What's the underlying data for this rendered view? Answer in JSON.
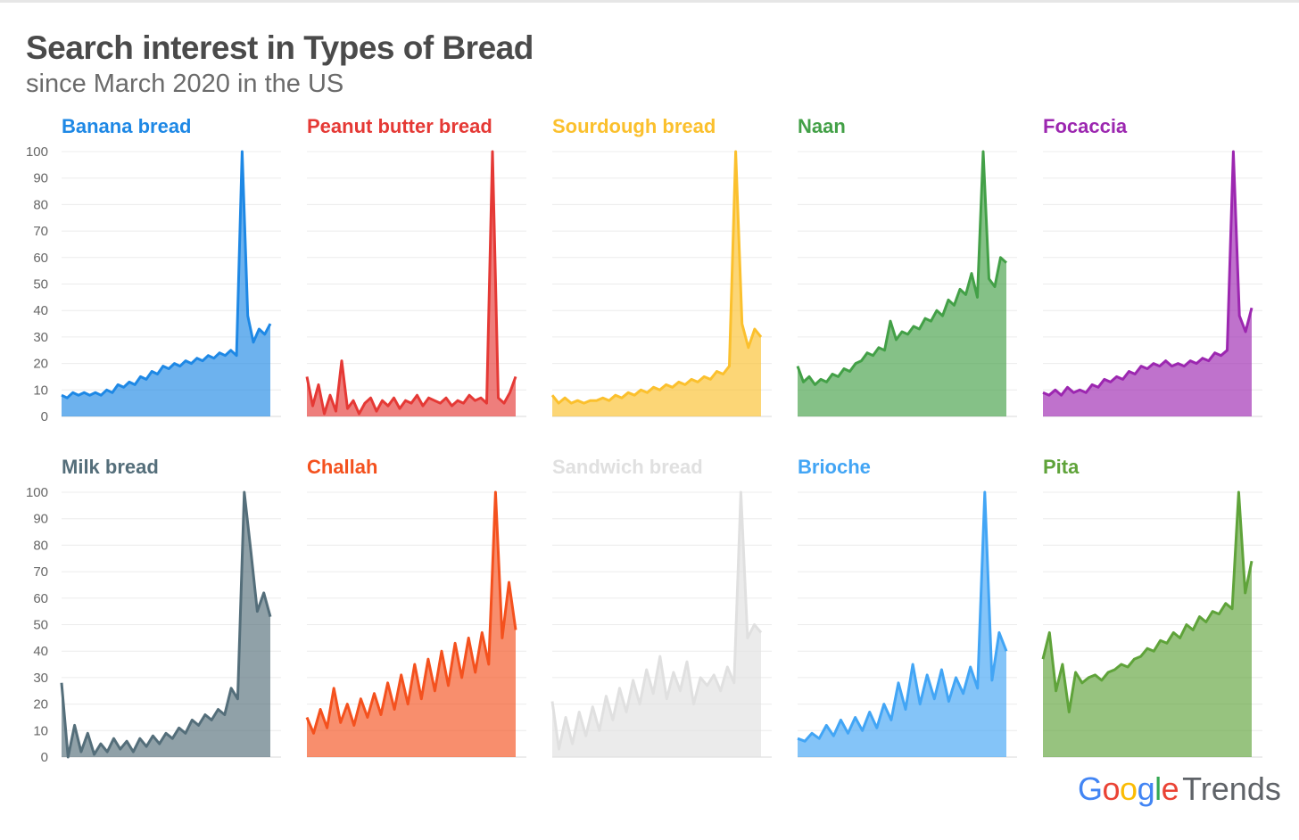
{
  "title": "Search interest in Types of Bread",
  "subtitle": "since March 2020 in the US",
  "brand": {
    "google": "Google",
    "product": "Trends",
    "colors": [
      "#4285F4",
      "#EA4335",
      "#FBBC05",
      "#4285F4",
      "#34A853",
      "#EA4335"
    ]
  },
  "chart_data": [
    {
      "type": "area",
      "title": "Banana bread",
      "color": "#1E88E5",
      "ylim": [
        0,
        100
      ],
      "yticks": [
        0,
        10,
        20,
        30,
        40,
        50,
        60,
        70,
        80,
        90,
        100
      ],
      "grid": true,
      "values": [
        8,
        7,
        9,
        8,
        9,
        8,
        9,
        8,
        10,
        9,
        12,
        11,
        13,
        12,
        15,
        14,
        17,
        16,
        19,
        18,
        20,
        19,
        21,
        20,
        22,
        21,
        23,
        22,
        24,
        23,
        25,
        23,
        100,
        38,
        28,
        33,
        31,
        35
      ]
    },
    {
      "type": "area",
      "title": "Peanut butter bread",
      "color": "#E53935",
      "ylim": [
        0,
        100
      ],
      "yticks": [
        0,
        10,
        20,
        30,
        40,
        50,
        60,
        70,
        80,
        90,
        100
      ],
      "grid": true,
      "values": [
        15,
        4,
        12,
        1,
        8,
        2,
        21,
        3,
        6,
        1,
        5,
        7,
        2,
        6,
        4,
        7,
        3,
        6,
        5,
        8,
        4,
        7,
        6,
        5,
        7,
        4,
        6,
        5,
        8,
        6,
        7,
        5,
        100,
        7,
        5,
        9,
        15
      ]
    },
    {
      "type": "area",
      "title": "Sourdough bread",
      "color": "#FBC02D",
      "ylim": [
        0,
        100
      ],
      "yticks": [
        0,
        10,
        20,
        30,
        40,
        50,
        60,
        70,
        80,
        90,
        100
      ],
      "grid": true,
      "values": [
        8,
        5,
        7,
        5,
        6,
        5,
        6,
        6,
        7,
        6,
        8,
        7,
        9,
        8,
        10,
        9,
        11,
        10,
        12,
        11,
        13,
        12,
        14,
        13,
        15,
        14,
        17,
        16,
        19,
        100,
        35,
        26,
        33,
        30
      ]
    },
    {
      "type": "area",
      "title": "Naan",
      "color": "#43A047",
      "ylim": [
        0,
        100
      ],
      "yticks": [
        0,
        10,
        20,
        30,
        40,
        50,
        60,
        70,
        80,
        90,
        100
      ],
      "grid": true,
      "values": [
        19,
        13,
        15,
        12,
        14,
        13,
        16,
        15,
        18,
        17,
        20,
        21,
        24,
        23,
        26,
        25,
        36,
        29,
        32,
        31,
        34,
        33,
        37,
        36,
        40,
        38,
        44,
        42,
        48,
        46,
        54,
        45,
        100,
        52,
        49,
        60,
        58
      ]
    },
    {
      "type": "area",
      "title": "Focaccia",
      "color": "#9C27B0",
      "ylim": [
        0,
        100
      ],
      "yticks": [
        0,
        10,
        20,
        30,
        40,
        50,
        60,
        70,
        80,
        90,
        100
      ],
      "grid": true,
      "values": [
        9,
        8,
        10,
        8,
        11,
        9,
        10,
        9,
        12,
        11,
        14,
        13,
        15,
        14,
        17,
        16,
        19,
        18,
        20,
        19,
        21,
        19,
        20,
        19,
        21,
        20,
        22,
        21,
        24,
        23,
        25,
        100,
        38,
        32,
        41
      ]
    },
    {
      "type": "area",
      "title": "Milk bread",
      "color": "#546E7A",
      "ylim": [
        0,
        100
      ],
      "yticks": [
        0,
        10,
        20,
        30,
        40,
        50,
        60,
        70,
        80,
        90,
        100
      ],
      "grid": true,
      "values": [
        28,
        0,
        12,
        2,
        9,
        1,
        5,
        2,
        7,
        3,
        6,
        2,
        7,
        4,
        8,
        5,
        9,
        7,
        11,
        9,
        14,
        12,
        16,
        14,
        18,
        16,
        26,
        22,
        100,
        78,
        55,
        62,
        53
      ]
    },
    {
      "type": "area",
      "title": "Challah",
      "color": "#F4511E",
      "ylim": [
        0,
        100
      ],
      "yticks": [
        0,
        10,
        20,
        30,
        40,
        50,
        60,
        70,
        80,
        90,
        100
      ],
      "grid": true,
      "values": [
        15,
        9,
        18,
        11,
        26,
        13,
        20,
        12,
        22,
        15,
        24,
        16,
        28,
        18,
        31,
        20,
        35,
        22,
        37,
        25,
        40,
        27,
        43,
        30,
        45,
        32,
        47,
        35,
        100,
        45,
        66,
        48
      ]
    },
    {
      "type": "area",
      "title": "Sandwich bread",
      "color": "#E0E0E0",
      "ylim": [
        0,
        100
      ],
      "yticks": [
        0,
        10,
        20,
        30,
        40,
        50,
        60,
        70,
        80,
        90,
        100
      ],
      "grid": true,
      "values": [
        21,
        3,
        15,
        5,
        17,
        8,
        19,
        10,
        23,
        14,
        26,
        17,
        29,
        20,
        33,
        24,
        38,
        22,
        32,
        25,
        36,
        20,
        30,
        27,
        31,
        25,
        34,
        28,
        100,
        45,
        50,
        47
      ]
    },
    {
      "type": "area",
      "title": "Brioche",
      "color": "#42A5F5",
      "ylim": [
        0,
        100
      ],
      "yticks": [
        0,
        10,
        20,
        30,
        40,
        50,
        60,
        70,
        80,
        90,
        100
      ],
      "grid": true,
      "values": [
        7,
        6,
        9,
        7,
        12,
        8,
        14,
        9,
        15,
        10,
        17,
        11,
        20,
        14,
        28,
        18,
        35,
        20,
        31,
        22,
        33,
        21,
        30,
        24,
        34,
        26,
        100,
        29,
        47,
        40
      ]
    },
    {
      "type": "area",
      "title": "Pita",
      "color": "#5FA33A",
      "ylim": [
        0,
        100
      ],
      "yticks": [
        0,
        10,
        20,
        30,
        40,
        50,
        60,
        70,
        80,
        90,
        100
      ],
      "grid": true,
      "values": [
        37,
        47,
        25,
        35,
        17,
        32,
        28,
        30,
        31,
        29,
        32,
        33,
        35,
        34,
        37,
        38,
        41,
        40,
        44,
        43,
        47,
        45,
        50,
        48,
        53,
        51,
        55,
        54,
        58,
        56,
        100,
        62,
        74
      ]
    }
  ]
}
